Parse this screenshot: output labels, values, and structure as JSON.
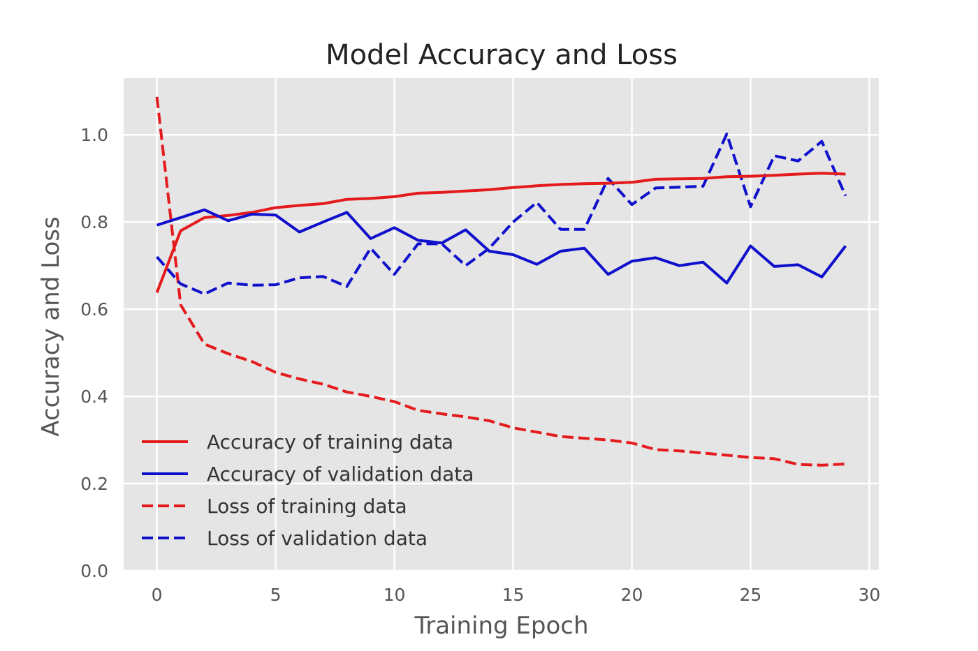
{
  "chart_data": {
    "type": "line",
    "title": "Model Accuracy and Loss",
    "xlabel": "Training Epoch",
    "ylabel": "Accuracy and Loss",
    "xlim": [
      -1.4,
      30.4
    ],
    "ylim": [
      0.0,
      1.13
    ],
    "xticks": [
      "0",
      "5",
      "10",
      "15",
      "20",
      "25",
      "30"
    ],
    "yticks": [
      "0.0",
      "0.2",
      "0.4",
      "0.6",
      "0.8",
      "1.0"
    ],
    "grid": true,
    "legend_position": "lower-left",
    "x": [
      0,
      1,
      2,
      3,
      4,
      5,
      6,
      7,
      8,
      9,
      10,
      11,
      12,
      13,
      14,
      15,
      16,
      17,
      18,
      19,
      20,
      21,
      22,
      23,
      24,
      25,
      26,
      27,
      28,
      29
    ],
    "series": [
      {
        "name": "Accuracy of training data",
        "color": "#e41a1c",
        "dash": "solid",
        "values": [
          0.638,
          0.78,
          0.81,
          0.815,
          0.822,
          0.833,
          0.838,
          0.842,
          0.852,
          0.854,
          0.858,
          0.866,
          0.868,
          0.871,
          0.874,
          0.879,
          0.883,
          0.886,
          0.888,
          0.889,
          0.891,
          0.898,
          0.899,
          0.9,
          0.904,
          0.905,
          0.907,
          0.91,
          0.912,
          0.91
        ]
      },
      {
        "name": "Accuracy of validation data",
        "color": "#0f0fcc",
        "dash": "solid",
        "values": [
          0.793,
          0.81,
          0.828,
          0.803,
          0.818,
          0.816,
          0.777,
          0.8,
          0.822,
          0.762,
          0.787,
          0.758,
          0.752,
          0.782,
          0.733,
          0.725,
          0.703,
          0.733,
          0.74,
          0.68,
          0.71,
          0.718,
          0.7,
          0.708,
          0.66,
          0.745,
          0.698,
          0.702,
          0.674,
          0.745
        ]
      },
      {
        "name": "Loss of training data",
        "color": "#e41a1c",
        "dash": "dashed",
        "values": [
          1.087,
          0.61,
          0.52,
          0.498,
          0.48,
          0.455,
          0.44,
          0.428,
          0.41,
          0.4,
          0.388,
          0.368,
          0.36,
          0.353,
          0.344,
          0.328,
          0.318,
          0.308,
          0.304,
          0.3,
          0.293,
          0.278,
          0.275,
          0.27,
          0.265,
          0.26,
          0.257,
          0.244,
          0.242,
          0.245
        ]
      },
      {
        "name": "Loss of validation data",
        "color": "#0f0fcc",
        "dash": "dashed",
        "values": [
          0.72,
          0.658,
          0.635,
          0.66,
          0.655,
          0.656,
          0.672,
          0.675,
          0.652,
          0.74,
          0.68,
          0.75,
          0.75,
          0.7,
          0.74,
          0.8,
          0.845,
          0.783,
          0.783,
          0.9,
          0.84,
          0.878,
          0.88,
          0.882,
          1.002,
          0.835,
          0.952,
          0.94,
          0.985,
          0.86
        ]
      }
    ]
  }
}
